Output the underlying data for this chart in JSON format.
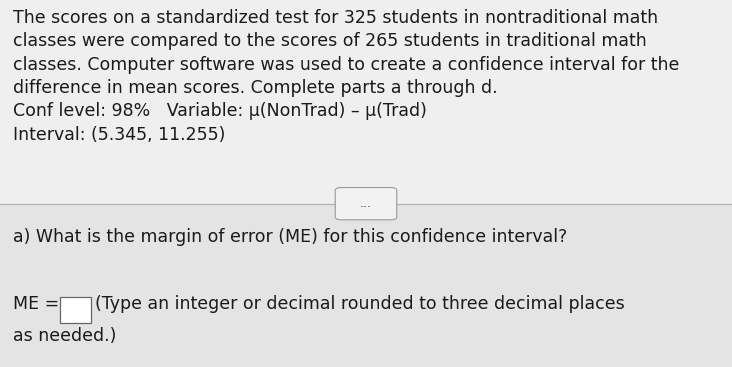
{
  "background_color": "#e8e8e8",
  "top_bg": "#efefef",
  "bottom_bg": "#e4e4e4",
  "all_top_text": "The scores on a standardized test for 325 students in nontraditional math\nclasses were compared to the scores of 265 students in traditional math\nclasses. Computer software was used to create a confidence interval for the\ndifference in mean scores. Complete parts a through d.\nConf level: 98%   Variable: μ(NonTrad) – μ(Trad)\nInterval: (5.345, 11.255)",
  "divider_dots": "...",
  "question_text": "a) What is the margin of error (ME) for this confidence interval?",
  "me_prefix": "ME =",
  "answer_suffix": "(Type an integer or decimal rounded to three decimal places",
  "answer_suffix2": "as needed.)",
  "font_size_body": 12.5,
  "text_color": "#1a1a1a",
  "divider_color": "#b0b0b0",
  "btn_face": "#f2f2f2",
  "btn_border": "#999999",
  "input_box_color": "#ffffff",
  "input_box_border": "#666666"
}
